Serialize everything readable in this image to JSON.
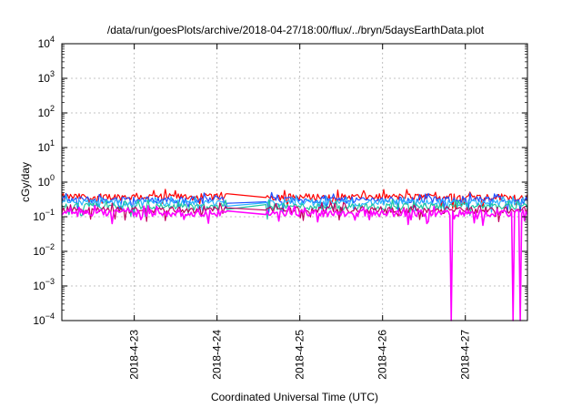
{
  "chart_data": {
    "type": "line",
    "title": "/data/run/goesPlots/archive/2018-04-27/18:00/flux/../bryn/5daysEarthData.plot",
    "xlabel": "Coordinated Universal Time (UTC)",
    "ylabel": "cGy/day",
    "yscale": "log",
    "ylim": [
      0.0001,
      10000
    ],
    "ytick_exponents": [
      -4,
      -3,
      -2,
      -1,
      0,
      1,
      2,
      3,
      4
    ],
    "y_tick_base": "10",
    "xlim": [
      "2018-04-22 03:00",
      "2018-04-27 18:00"
    ],
    "x_ticks": [
      "2018-4-23",
      "2018-4-24",
      "2018-4-25",
      "2018-4-26",
      "2018-4-27"
    ],
    "grid": true,
    "legend": "none",
    "data_gap": [
      "2018-04-24 03:00",
      "2018-04-24 14:00"
    ],
    "series": [
      {
        "color": "#ff0000",
        "level": 0.38
      },
      {
        "color": "#1e50ff",
        "level": 0.31
      },
      {
        "color": "#2ab4ff",
        "level": 0.26
      },
      {
        "color": "#20c8a0",
        "level": 0.2
      },
      {
        "color": "#c00060",
        "level": 0.16
      },
      {
        "color": "#ff00ff",
        "level": 0.13
      }
    ],
    "dropouts": [
      {
        "date": "2018-04-26 20:00",
        "min": 0.0001
      },
      {
        "date": "2018-04-27 14:00",
        "min": 0.0001
      },
      {
        "date": "2018-04-27 16:00",
        "min": 0.0001
      }
    ]
  }
}
